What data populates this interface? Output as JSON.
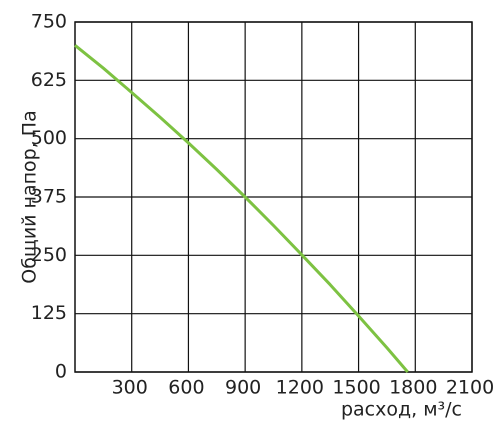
{
  "chart_data": {
    "type": "line",
    "ylabel": "Общий напор, Па",
    "xlabel": "расход, м³/с",
    "x": [
      0,
      150,
      300,
      450,
      600,
      750,
      900,
      1050,
      1200,
      1350,
      1500,
      1650,
      1760
    ],
    "series": [
      {
        "color": "#7dc242",
        "values": [
          700,
          651,
          599,
          546,
          491,
          434,
          375,
          314,
          251,
          187,
          120,
          52,
          0
        ]
      }
    ],
    "xlim": [
      0,
      2100
    ],
    "xticks": [
      300,
      600,
      900,
      1200,
      1500,
      1800,
      2100
    ],
    "ylim": [
      0,
      750
    ],
    "yticks": [
      0,
      125,
      250,
      375,
      500,
      625,
      750
    ],
    "grid": true
  }
}
